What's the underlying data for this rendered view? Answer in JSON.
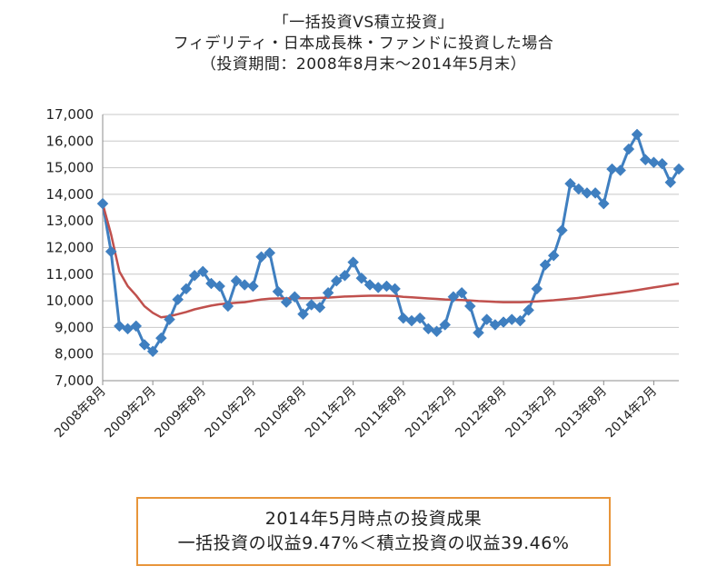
{
  "chart_data": {
    "type": "line",
    "title_lines": [
      "「一括投資VS積立投資」",
      "フィデリティ・日本成長株・ファンドに投資した場合",
      "（投資期間：2008年8月末～2014年5月末）"
    ],
    "ylim": [
      7000,
      17000
    ],
    "yticks": [
      "7,000",
      "8,000",
      "9,000",
      "10,000",
      "11,000",
      "12,000",
      "13,000",
      "14,000",
      "15,000",
      "16,000",
      "17,000"
    ],
    "ytick_values": [
      7000,
      8000,
      9000,
      10000,
      11000,
      12000,
      13000,
      14000,
      15000,
      16000,
      17000
    ],
    "xlabels": [
      "2008年8月",
      "2009年2月",
      "2009年8月",
      "2010年2月",
      "2010年8月",
      "2011年2月",
      "2011年8月",
      "2012年2月",
      "2012年8月",
      "2013年2月",
      "2013年8月",
      "2014年2月"
    ],
    "xlabel_index": [
      0,
      6,
      12,
      18,
      24,
      30,
      36,
      42,
      48,
      54,
      60,
      66
    ],
    "x_count": 70,
    "grid": true,
    "series": [
      {
        "name": "一括投資",
        "color": "#3f7fc0",
        "marker": "diamond",
        "values": [
          13650,
          11850,
          9050,
          8950,
          9050,
          8350,
          8100,
          8600,
          9300,
          10050,
          10450,
          10950,
          11100,
          10650,
          10550,
          9800,
          10750,
          10600,
          10550,
          11650,
          11800,
          10350,
          9950,
          10150,
          9500,
          9850,
          9750,
          10300,
          10750,
          10950,
          11450,
          10850,
          10600,
          10500,
          10550,
          10450,
          9350,
          9250,
          9350,
          8950,
          8850,
          9100,
          10150,
          10300,
          9800,
          8800,
          9300,
          9100,
          9200,
          9300,
          9250,
          9650,
          10450,
          11350,
          11700,
          12650,
          14400,
          14200,
          14050,
          14050,
          13650,
          14950,
          14900,
          15700,
          16250,
          15300,
          15200,
          15150,
          14450,
          14950
        ]
      },
      {
        "name": "積立投資",
        "color": "#c0504d",
        "marker": "none",
        "values": [
          13650,
          12500,
          11100,
          10550,
          10200,
          9800,
          9550,
          9380,
          9420,
          9500,
          9580,
          9680,
          9750,
          9820,
          9870,
          9900,
          9930,
          9950,
          10000,
          10050,
          10080,
          10090,
          10090,
          10100,
          10100,
          10100,
          10110,
          10120,
          10140,
          10160,
          10170,
          10180,
          10190,
          10190,
          10190,
          10180,
          10150,
          10130,
          10110,
          10090,
          10070,
          10050,
          10040,
          10030,
          10010,
          9990,
          9980,
          9960,
          9950,
          9950,
          9950,
          9960,
          9980,
          10000,
          10020,
          10050,
          10080,
          10110,
          10150,
          10190,
          10230,
          10270,
          10310,
          10350,
          10400,
          10450,
          10500,
          10550,
          10600,
          10650
        ]
      }
    ]
  },
  "result_box": {
    "line1": "2014年5月時点の投資成果",
    "line2": "一括投資の収益9.47%＜積立投資の収益39.46%"
  },
  "colors": {
    "border": "#e8953a",
    "grid": "#c8c8c8"
  }
}
